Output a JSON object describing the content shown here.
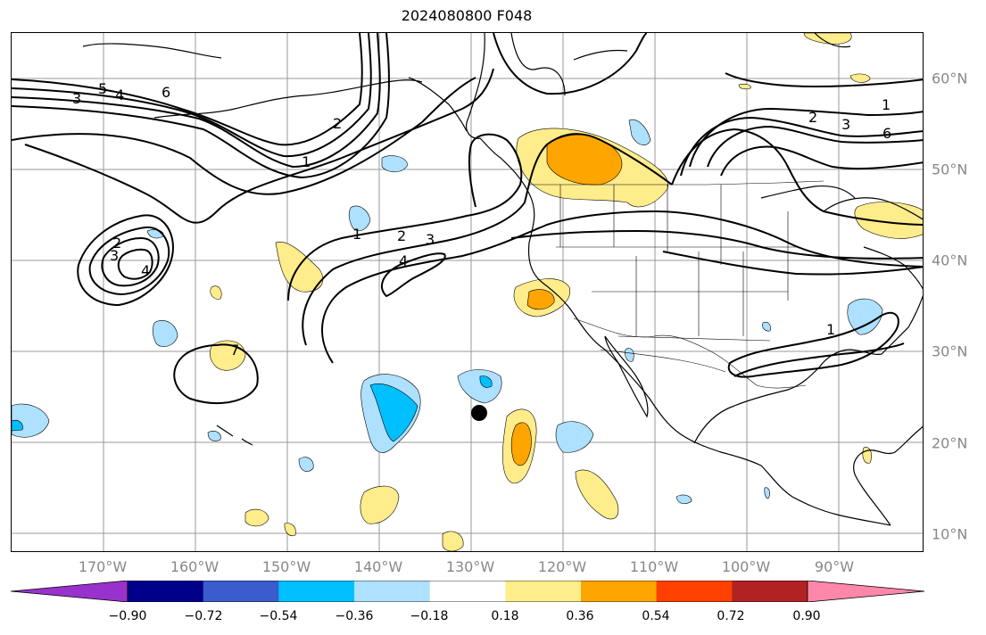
{
  "title": "2024080800 F048",
  "lon_labels": [
    "170°W",
    "160°W",
    "150°W",
    "140°W",
    "130°W",
    "120°W",
    "110°W",
    "100°W",
    "90°W"
  ],
  "lat_labels": [
    "60°N",
    "50°N",
    "40°N",
    "30°N",
    "20°N",
    "10°N"
  ],
  "colorbar": {
    "ticks": [
      "−0.90",
      "−0.72",
      "−0.54",
      "−0.36",
      "−0.18",
      "0.18",
      "0.36",
      "0.54",
      "0.72",
      "0.90"
    ],
    "colors": [
      "#9932cc",
      "#00008b",
      "#3a5ccc",
      "#00bfff",
      "#aee0ff",
      "#ffffff",
      "#ffec8b",
      "#ffa500",
      "#ff4000",
      "#b22222",
      "#ff88aa"
    ]
  },
  "contour_labels": [
    "3",
    "5",
    "4",
    "6",
    "2",
    "1",
    "1",
    "2",
    "3",
    "4",
    "1",
    "2",
    "3",
    "6",
    "2",
    "3",
    "4",
    "1",
    "7"
  ],
  "marker": "storm-position-dot"
}
